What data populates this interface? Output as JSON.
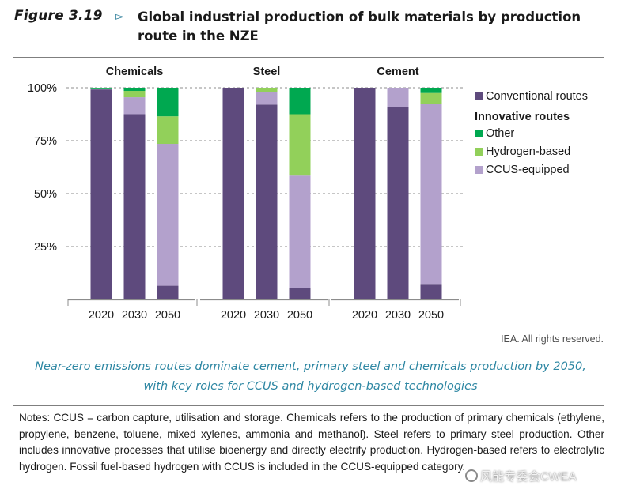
{
  "figure": {
    "label": "Figure 3.19",
    "arrow": "▻",
    "title": "Global industrial production of bulk materials by production route in the NZE"
  },
  "chart_data": {
    "type": "bar",
    "stacked": true,
    "groups": [
      {
        "name": "Chemicals",
        "categories": [
          "2020",
          "2030",
          "2050"
        ],
        "series": [
          {
            "name": "Conventional routes",
            "values": [
              99.2,
              87.5,
              6.5
            ]
          },
          {
            "name": "CCUS-equipped",
            "values": [
              0.3,
              8.0,
              67.0
            ]
          },
          {
            "name": "Hydrogen-based",
            "values": [
              0.2,
              3.0,
              13.0
            ]
          },
          {
            "name": "Other",
            "values": [
              0.3,
              1.5,
              13.5
            ]
          }
        ]
      },
      {
        "name": "Steel",
        "categories": [
          "2020",
          "2030",
          "2050"
        ],
        "series": [
          {
            "name": "Conventional routes",
            "values": [
              100.0,
              92.0,
              5.5
            ]
          },
          {
            "name": "CCUS-equipped",
            "values": [
              0.0,
              6.0,
              53.0
            ]
          },
          {
            "name": "Hydrogen-based",
            "values": [
              0.0,
              2.0,
              29.0
            ]
          },
          {
            "name": "Other",
            "values": [
              0.0,
              0.0,
              12.5
            ]
          }
        ]
      },
      {
        "name": "Cement",
        "categories": [
          "2020",
          "2030",
          "2050"
        ],
        "series": [
          {
            "name": "Conventional routes",
            "values": [
              100.0,
              91.0,
              7.0
            ]
          },
          {
            "name": "CCUS-equipped",
            "values": [
              0.0,
              9.0,
              85.5
            ]
          },
          {
            "name": "Hydrogen-based",
            "values": [
              0.0,
              0.0,
              5.0
            ]
          },
          {
            "name": "Other",
            "values": [
              0.0,
              0.0,
              2.5
            ]
          }
        ]
      }
    ],
    "y_ticks": [
      "25%",
      "50%",
      "75%",
      "100%"
    ],
    "y_tick_values": [
      25,
      50,
      75,
      100
    ],
    "ylim": [
      0,
      100
    ],
    "colors": {
      "Conventional routes": "#5e4a7d",
      "CCUS-equipped": "#b3a1cc",
      "Hydrogen-based": "#92d05a",
      "Other": "#00a850"
    },
    "legend": {
      "placement": "right",
      "items": [
        {
          "series": "Conventional routes",
          "label": "Conventional routes"
        },
        {
          "heading": "Innovative routes"
        },
        {
          "series": "Other",
          "label": "Other"
        },
        {
          "series": "Hydrogen-based",
          "label": "Hydrogen-based"
        },
        {
          "series": "CCUS-equipped",
          "label": "CCUS-equipped"
        }
      ]
    }
  },
  "credit": "IEA. All rights reserved.",
  "caption": "Near-zero emissions routes dominate cement, primary steel and chemicals production by 2050, with key roles for CCUS and hydrogen-based technologies",
  "notes": "Notes: CCUS = carbon capture, utilisation and storage. Chemicals refers to the production of primary chemicals (ethylene, propylene, benzene, toluene, mixed xylenes, ammonia and methanol). Steel refers to primary steel production. Other includes innovative processes that utilise bioenergy and directly electrify production. Hydrogen-based refers to electrolytic hydrogen. Fossil fuel-based hydrogen with CCUS is included in the CCUS-equipped category.",
  "watermark": "风能专委会CWEA"
}
